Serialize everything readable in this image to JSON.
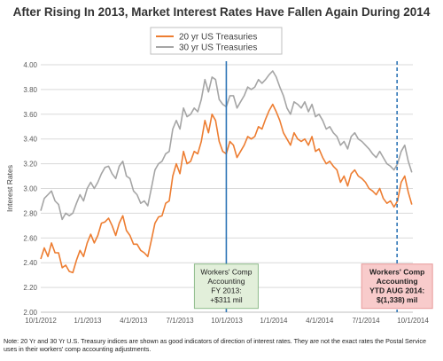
{
  "chart_data": {
    "type": "line",
    "title": "After Rising In 2013, Market Interest Rates Have Fallen Again During 2014",
    "xlabel": "",
    "ylabel": "Interest Rates",
    "x_ticks": [
      "10/1/2012",
      "1/1/2013",
      "4/1/2013",
      "7/1/2013",
      "10/1/2013",
      "1/1/2014",
      "4/1/2014",
      "7/1/2014",
      "10/1/2014"
    ],
    "y_ticks": [
      "2.00",
      "2.20",
      "2.40",
      "2.60",
      "2.80",
      "3.00",
      "3.20",
      "3.40",
      "3.60",
      "3.80",
      "4.00"
    ],
    "xlim": [
      "2012-10-01",
      "2014-10-01"
    ],
    "ylim": [
      2.0,
      4.0
    ],
    "grid": "horizontal",
    "legend_position": "top-left",
    "series": [
      {
        "name": "20 yr US Treasuries",
        "color": "#ED7D31",
        "points": [
          [
            "2012-10-01",
            2.43
          ],
          [
            "2012-10-08",
            2.52
          ],
          [
            "2012-10-15",
            2.45
          ],
          [
            "2012-10-22",
            2.56
          ],
          [
            "2012-10-29",
            2.48
          ],
          [
            "2012-11-05",
            2.48
          ],
          [
            "2012-11-12",
            2.36
          ],
          [
            "2012-11-19",
            2.38
          ],
          [
            "2012-11-26",
            2.33
          ],
          [
            "2012-12-03",
            2.32
          ],
          [
            "2012-12-10",
            2.42
          ],
          [
            "2012-12-17",
            2.5
          ],
          [
            "2012-12-24",
            2.45
          ],
          [
            "2012-12-31",
            2.56
          ],
          [
            "2013-01-07",
            2.63
          ],
          [
            "2013-01-14",
            2.56
          ],
          [
            "2013-01-21",
            2.62
          ],
          [
            "2013-01-28",
            2.72
          ],
          [
            "2013-02-04",
            2.73
          ],
          [
            "2013-02-11",
            2.76
          ],
          [
            "2013-02-18",
            2.7
          ],
          [
            "2013-02-25",
            2.62
          ],
          [
            "2013-03-04",
            2.72
          ],
          [
            "2013-03-11",
            2.78
          ],
          [
            "2013-03-18",
            2.66
          ],
          [
            "2013-03-25",
            2.62
          ],
          [
            "2013-04-01",
            2.55
          ],
          [
            "2013-04-08",
            2.55
          ],
          [
            "2013-04-15",
            2.5
          ],
          [
            "2013-04-22",
            2.48
          ],
          [
            "2013-04-29",
            2.45
          ],
          [
            "2013-05-06",
            2.58
          ],
          [
            "2013-05-13",
            2.72
          ],
          [
            "2013-05-20",
            2.77
          ],
          [
            "2013-05-27",
            2.78
          ],
          [
            "2013-06-03",
            2.88
          ],
          [
            "2013-06-10",
            2.9
          ],
          [
            "2013-06-17",
            3.1
          ],
          [
            "2013-06-24",
            3.2
          ],
          [
            "2013-07-01",
            3.12
          ],
          [
            "2013-07-08",
            3.3
          ],
          [
            "2013-07-15",
            3.2
          ],
          [
            "2013-07-22",
            3.22
          ],
          [
            "2013-07-29",
            3.3
          ],
          [
            "2013-08-05",
            3.28
          ],
          [
            "2013-08-12",
            3.38
          ],
          [
            "2013-08-19",
            3.55
          ],
          [
            "2013-08-26",
            3.45
          ],
          [
            "2013-09-02",
            3.6
          ],
          [
            "2013-09-09",
            3.55
          ],
          [
            "2013-09-16",
            3.38
          ],
          [
            "2013-09-23",
            3.3
          ],
          [
            "2013-09-30",
            3.28
          ],
          [
            "2013-10-07",
            3.38
          ],
          [
            "2013-10-14",
            3.35
          ],
          [
            "2013-10-21",
            3.25
          ],
          [
            "2013-10-28",
            3.3
          ],
          [
            "2013-11-04",
            3.35
          ],
          [
            "2013-11-11",
            3.42
          ],
          [
            "2013-11-18",
            3.4
          ],
          [
            "2013-11-25",
            3.42
          ],
          [
            "2013-12-02",
            3.5
          ],
          [
            "2013-12-09",
            3.48
          ],
          [
            "2013-12-16",
            3.56
          ],
          [
            "2013-12-23",
            3.63
          ],
          [
            "2013-12-30",
            3.68
          ],
          [
            "2014-01-06",
            3.62
          ],
          [
            "2014-01-13",
            3.55
          ],
          [
            "2014-01-20",
            3.45
          ],
          [
            "2014-01-27",
            3.4
          ],
          [
            "2014-02-03",
            3.35
          ],
          [
            "2014-02-10",
            3.45
          ],
          [
            "2014-02-17",
            3.4
          ],
          [
            "2014-02-24",
            3.38
          ],
          [
            "2014-03-03",
            3.4
          ],
          [
            "2014-03-10",
            3.35
          ],
          [
            "2014-03-17",
            3.42
          ],
          [
            "2014-03-24",
            3.3
          ],
          [
            "2014-03-31",
            3.32
          ],
          [
            "2014-04-07",
            3.25
          ],
          [
            "2014-04-14",
            3.2
          ],
          [
            "2014-04-21",
            3.22
          ],
          [
            "2014-04-28",
            3.18
          ],
          [
            "2014-05-05",
            3.15
          ],
          [
            "2014-05-12",
            3.05
          ],
          [
            "2014-05-19",
            3.1
          ],
          [
            "2014-05-26",
            3.02
          ],
          [
            "2014-06-02",
            3.12
          ],
          [
            "2014-06-09",
            3.15
          ],
          [
            "2014-06-16",
            3.1
          ],
          [
            "2014-06-23",
            3.08
          ],
          [
            "2014-06-30",
            3.05
          ],
          [
            "2014-07-07",
            3.0
          ],
          [
            "2014-07-14",
            2.98
          ],
          [
            "2014-07-21",
            2.95
          ],
          [
            "2014-07-28",
            3.0
          ],
          [
            "2014-08-04",
            2.92
          ],
          [
            "2014-08-11",
            2.88
          ],
          [
            "2014-08-18",
            2.9
          ],
          [
            "2014-08-25",
            2.85
          ],
          [
            "2014-09-01",
            2.9
          ],
          [
            "2014-09-08",
            3.05
          ],
          [
            "2014-09-15",
            3.1
          ],
          [
            "2014-09-22",
            2.97
          ],
          [
            "2014-09-29",
            2.87
          ]
        ]
      },
      {
        "name": "30 yr US Treasuries",
        "color": "#A5A5A5",
        "points": [
          [
            "2012-10-01",
            2.82
          ],
          [
            "2012-10-08",
            2.92
          ],
          [
            "2012-10-15",
            2.95
          ],
          [
            "2012-10-22",
            2.98
          ],
          [
            "2012-10-29",
            2.9
          ],
          [
            "2012-11-05",
            2.87
          ],
          [
            "2012-11-12",
            2.75
          ],
          [
            "2012-11-19",
            2.8
          ],
          [
            "2012-11-26",
            2.78
          ],
          [
            "2012-12-03",
            2.8
          ],
          [
            "2012-12-10",
            2.88
          ],
          [
            "2012-12-17",
            2.95
          ],
          [
            "2012-12-24",
            2.9
          ],
          [
            "2012-12-31",
            3.0
          ],
          [
            "2013-01-07",
            3.05
          ],
          [
            "2013-01-14",
            3.0
          ],
          [
            "2013-01-21",
            3.05
          ],
          [
            "2013-01-28",
            3.12
          ],
          [
            "2013-02-04",
            3.17
          ],
          [
            "2013-02-11",
            3.18
          ],
          [
            "2013-02-18",
            3.12
          ],
          [
            "2013-02-25",
            3.08
          ],
          [
            "2013-03-04",
            3.18
          ],
          [
            "2013-03-11",
            3.22
          ],
          [
            "2013-03-18",
            3.1
          ],
          [
            "2013-03-25",
            3.08
          ],
          [
            "2013-04-01",
            2.98
          ],
          [
            "2013-04-08",
            2.95
          ],
          [
            "2013-04-15",
            2.88
          ],
          [
            "2013-04-22",
            2.9
          ],
          [
            "2013-04-29",
            2.86
          ],
          [
            "2013-05-06",
            3.0
          ],
          [
            "2013-05-13",
            3.15
          ],
          [
            "2013-05-20",
            3.2
          ],
          [
            "2013-05-27",
            3.22
          ],
          [
            "2013-06-03",
            3.28
          ],
          [
            "2013-06-10",
            3.3
          ],
          [
            "2013-06-17",
            3.48
          ],
          [
            "2013-06-24",
            3.55
          ],
          [
            "2013-07-01",
            3.48
          ],
          [
            "2013-07-08",
            3.65
          ],
          [
            "2013-07-15",
            3.58
          ],
          [
            "2013-07-22",
            3.6
          ],
          [
            "2013-07-29",
            3.65
          ],
          [
            "2013-08-05",
            3.62
          ],
          [
            "2013-08-12",
            3.72
          ],
          [
            "2013-08-19",
            3.88
          ],
          [
            "2013-08-26",
            3.78
          ],
          [
            "2013-09-02",
            3.9
          ],
          [
            "2013-09-09",
            3.88
          ],
          [
            "2013-09-16",
            3.72
          ],
          [
            "2013-09-23",
            3.68
          ],
          [
            "2013-09-30",
            3.66
          ],
          [
            "2013-10-07",
            3.75
          ],
          [
            "2013-10-14",
            3.75
          ],
          [
            "2013-10-21",
            3.65
          ],
          [
            "2013-10-28",
            3.7
          ],
          [
            "2013-11-04",
            3.75
          ],
          [
            "2013-11-11",
            3.82
          ],
          [
            "2013-11-18",
            3.8
          ],
          [
            "2013-11-25",
            3.82
          ],
          [
            "2013-12-02",
            3.88
          ],
          [
            "2013-12-09",
            3.85
          ],
          [
            "2013-12-16",
            3.88
          ],
          [
            "2013-12-23",
            3.92
          ],
          [
            "2013-12-30",
            3.95
          ],
          [
            "2014-01-06",
            3.9
          ],
          [
            "2014-01-13",
            3.82
          ],
          [
            "2014-01-20",
            3.75
          ],
          [
            "2014-01-27",
            3.65
          ],
          [
            "2014-02-03",
            3.6
          ],
          [
            "2014-02-10",
            3.7
          ],
          [
            "2014-02-17",
            3.68
          ],
          [
            "2014-02-24",
            3.65
          ],
          [
            "2014-03-03",
            3.7
          ],
          [
            "2014-03-10",
            3.62
          ],
          [
            "2014-03-17",
            3.68
          ],
          [
            "2014-03-24",
            3.58
          ],
          [
            "2014-03-31",
            3.6
          ],
          [
            "2014-04-07",
            3.55
          ],
          [
            "2014-04-14",
            3.48
          ],
          [
            "2014-04-21",
            3.5
          ],
          [
            "2014-04-28",
            3.45
          ],
          [
            "2014-05-05",
            3.42
          ],
          [
            "2014-05-12",
            3.35
          ],
          [
            "2014-05-19",
            3.38
          ],
          [
            "2014-05-26",
            3.32
          ],
          [
            "2014-06-02",
            3.42
          ],
          [
            "2014-06-09",
            3.45
          ],
          [
            "2014-06-16",
            3.4
          ],
          [
            "2014-06-23",
            3.38
          ],
          [
            "2014-06-30",
            3.35
          ],
          [
            "2014-07-07",
            3.32
          ],
          [
            "2014-07-14",
            3.28
          ],
          [
            "2014-07-21",
            3.25
          ],
          [
            "2014-07-28",
            3.3
          ],
          [
            "2014-08-04",
            3.25
          ],
          [
            "2014-08-11",
            3.2
          ],
          [
            "2014-08-18",
            3.18
          ],
          [
            "2014-08-25",
            3.15
          ],
          [
            "2014-09-01",
            3.2
          ],
          [
            "2014-09-08",
            3.3
          ],
          [
            "2014-09-15",
            3.35
          ],
          [
            "2014-09-22",
            3.22
          ],
          [
            "2014-09-29",
            3.13
          ]
        ]
      }
    ],
    "reference_lines": [
      {
        "x": "2013-09-30",
        "style": "solid",
        "color": "#2E75B6"
      },
      {
        "x": "2014-08-31",
        "style": "dashed",
        "color": "#2E75B6"
      }
    ],
    "annotations": [
      {
        "lines": [
          "Workers' Comp",
          "Accounting",
          "FY 2013:",
          "+$311 mil"
        ],
        "bold": false,
        "background": "#E2EFDA",
        "border": "#8FBC8B",
        "x": "2013-09-30",
        "y": 2.21
      },
      {
        "lines": [
          "Workers' Comp",
          "Accounting",
          "YTD AUG 2014:",
          "$(1,338) mil"
        ],
        "bold": true,
        "background": "#F8CBCB",
        "border": "#E89A9A",
        "x": "2014-08-31",
        "y": 2.21
      }
    ]
  },
  "footnote": "Note: 20 Yr and 30 Yr U.S. Treasury indices are shown as good indicators of direction of interest rates. They are not the exact rates the Postal Service uses in their workers' comp accounting adjustments."
}
